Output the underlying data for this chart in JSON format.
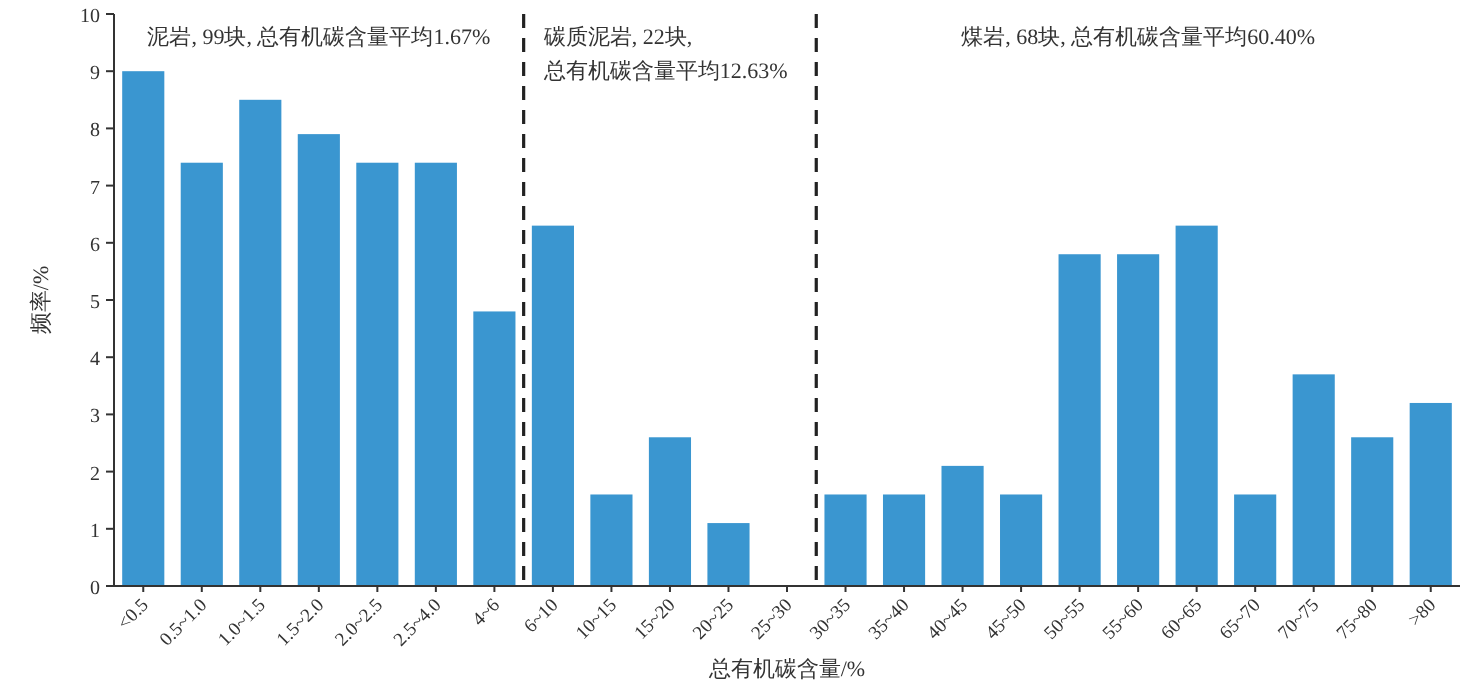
{
  "chart_data": {
    "type": "bar",
    "categories": [
      "<0.5",
      "0.5~1.0",
      "1.0~1.5",
      "1.5~2.0",
      "2.0~2.5",
      "2.5~4.0",
      "4~6",
      "6~10",
      "10~15",
      "15~20",
      "20~25",
      "25~30",
      "30~35",
      "35~40",
      "40~45",
      "45~50",
      "50~55",
      "55~60",
      "60~65",
      "65~70",
      "70~75",
      "75~80",
      ">80"
    ],
    "values": [
      9.0,
      7.4,
      8.5,
      7.9,
      7.4,
      7.4,
      4.8,
      6.3,
      1.6,
      2.6,
      1.1,
      0,
      1.6,
      1.6,
      2.1,
      1.6,
      5.8,
      5.8,
      6.3,
      1.6,
      3.7,
      2.6,
      3.2
    ],
    "color": "#3a96d0",
    "xlabel": "总有机碳含量/%",
    "ylabel": "频率/%",
    "ylim": [
      0,
      10
    ],
    "yticks": [
      0,
      1,
      2,
      3,
      4,
      5,
      6,
      7,
      8,
      9,
      10
    ],
    "annotations": [
      "泥岩, 99块, 总有机碳含量平均1.67%",
      "碳质泥岩, 22块,\n总有机碳含量平均12.63%",
      "煤岩, 68块, 总有机碳含量平均60.40%"
    ],
    "grid": false
  }
}
